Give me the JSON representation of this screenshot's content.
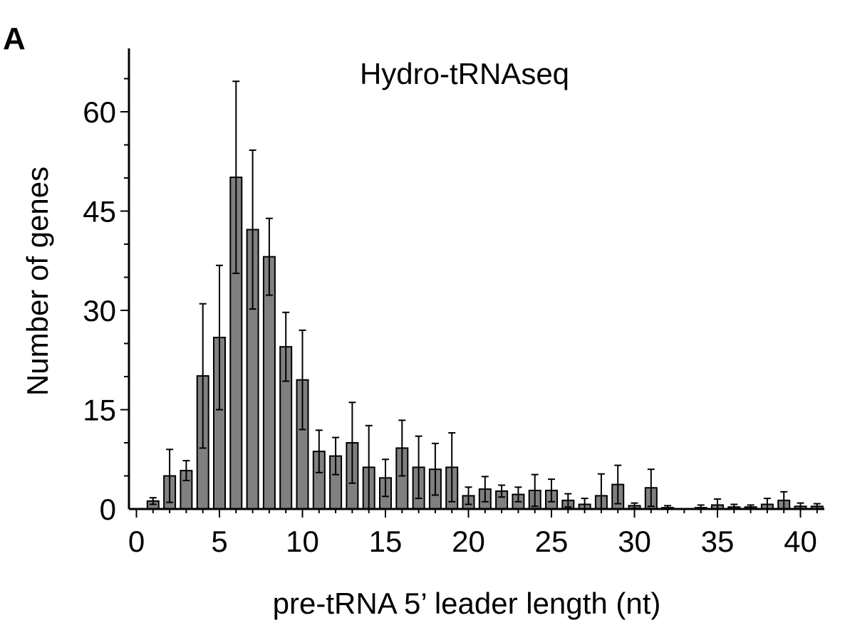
{
  "panel_label": "A",
  "chart_data": {
    "type": "bar",
    "title": "Hydro-tRNAseq",
    "xlabel": "pre-tRNA 5’ leader length (nt)",
    "ylabel": "Number of genes",
    "xlim": [
      -1,
      41.5
    ],
    "ylim": [
      0,
      68
    ],
    "x_ticks": [
      0,
      5,
      10,
      15,
      20,
      25,
      30,
      35,
      40
    ],
    "y_ticks": [
      0,
      15,
      30,
      45,
      60
    ],
    "grid": false,
    "bar_color": "#808080",
    "x": [
      1,
      2,
      3,
      4,
      5,
      6,
      7,
      8,
      9,
      10,
      11,
      12,
      13,
      14,
      15,
      16,
      17,
      18,
      19,
      20,
      21,
      22,
      23,
      24,
      25,
      26,
      27,
      28,
      29,
      30,
      31,
      32,
      33,
      34,
      35,
      36,
      37,
      38,
      39,
      40,
      41
    ],
    "values": [
      1.2,
      5.0,
      5.8,
      20.1,
      25.9,
      50.1,
      42.2,
      38.1,
      24.5,
      19.5,
      8.7,
      8.0,
      10.0,
      6.3,
      4.7,
      9.2,
      6.3,
      6.0,
      6.3,
      2.0,
      3.0,
      2.7,
      2.2,
      2.8,
      2.8,
      1.3,
      0.7,
      2.0,
      3.7,
      0.5,
      3.2,
      0.2,
      0.0,
      0.2,
      0.6,
      0.3,
      0.3,
      0.7,
      1.3,
      0.4,
      0.4
    ],
    "errors": [
      0.5,
      4.0,
      1.5,
      10.9,
      10.9,
      14.5,
      12.0,
      5.8,
      5.2,
      7.5,
      3.2,
      2.8,
      6.1,
      6.3,
      2.8,
      4.2,
      4.7,
      3.9,
      5.2,
      1.3,
      1.9,
      0.9,
      1.1,
      2.4,
      1.7,
      1.0,
      0.9,
      3.3,
      2.9,
      0.4,
      2.8,
      0.3,
      0.0,
      0.4,
      0.9,
      0.4,
      0.3,
      0.9,
      1.3,
      0.5,
      0.4
    ]
  }
}
